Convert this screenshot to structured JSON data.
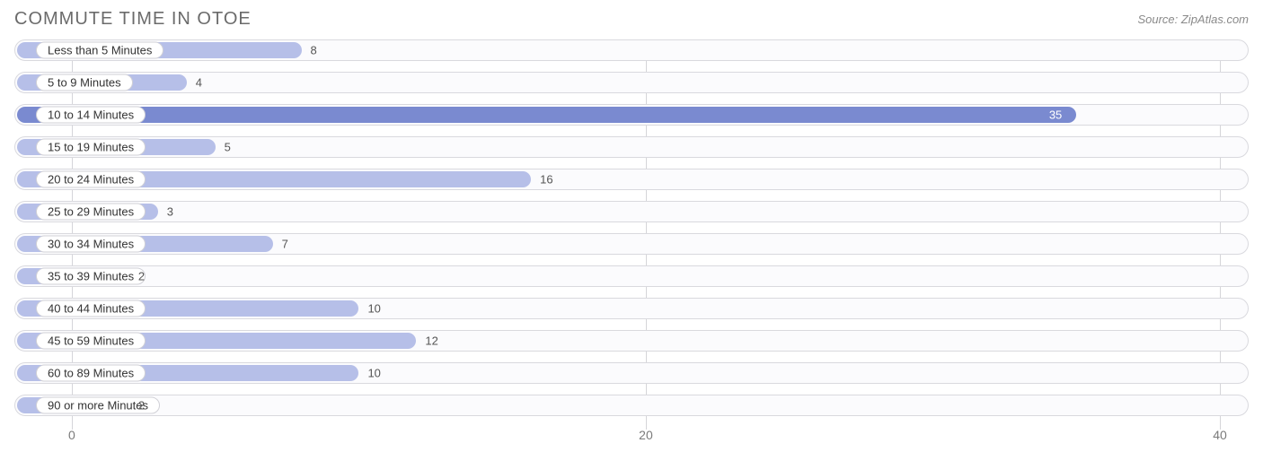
{
  "title": "COMMUTE TIME IN OTOE",
  "source": "Source: ZipAtlas.com",
  "chart": {
    "type": "bar-horizontal",
    "xlim": [
      -2,
      41
    ],
    "xticks": [
      0,
      20,
      40
    ],
    "bar_color_light": "#b6bfe8",
    "bar_color_dark": "#7a8ad0",
    "highlight_value": 35,
    "track_border": "#d9d9de",
    "track_bg": "#fbfbfd",
    "grid_color": "#d5d5d9",
    "label_text_color": "#333333",
    "value_text_outside": "#555555",
    "value_text_inside": "#ffffff",
    "title_color": "#6b6b6b",
    "source_color": "#8a8a8a",
    "categories": [
      {
        "label": "Less than 5 Minutes",
        "value": 8
      },
      {
        "label": "5 to 9 Minutes",
        "value": 4
      },
      {
        "label": "10 to 14 Minutes",
        "value": 35
      },
      {
        "label": "15 to 19 Minutes",
        "value": 5
      },
      {
        "label": "20 to 24 Minutes",
        "value": 16
      },
      {
        "label": "25 to 29 Minutes",
        "value": 3
      },
      {
        "label": "30 to 34 Minutes",
        "value": 7
      },
      {
        "label": "35 to 39 Minutes",
        "value": 2
      },
      {
        "label": "40 to 44 Minutes",
        "value": 10
      },
      {
        "label": "45 to 59 Minutes",
        "value": 12
      },
      {
        "label": "60 to 89 Minutes",
        "value": 10
      },
      {
        "label": "90 or more Minutes",
        "value": 2
      }
    ]
  }
}
